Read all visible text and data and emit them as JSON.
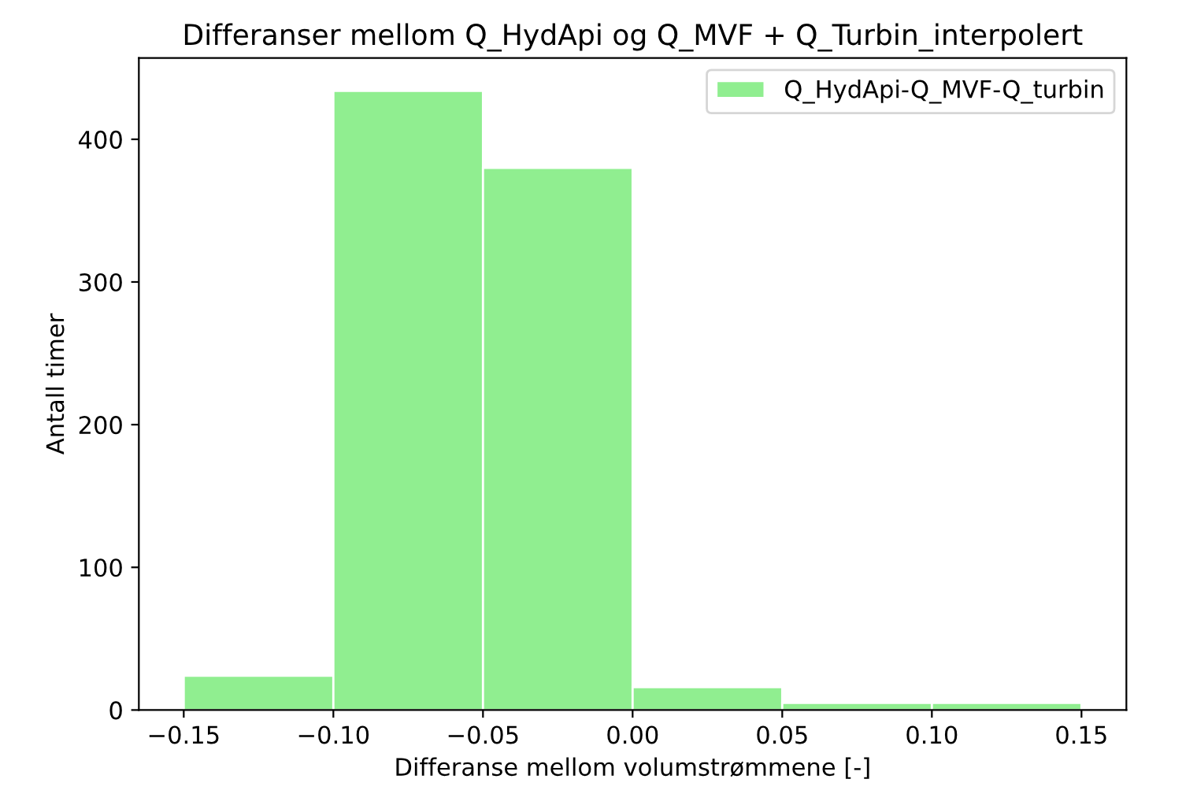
{
  "chart_data": {
    "type": "histogram",
    "title": "Differanser mellom Q_HydApi og Q_MVF + Q_Turbin_interpolert",
    "xlabel": "Differanse mellom volumstrømmene [-]",
    "ylabel": "Antall timer",
    "bins": [
      -0.15,
      -0.1,
      -0.05,
      0.0,
      0.05,
      0.1,
      0.15
    ],
    "series": [
      {
        "name": "Q_HydApi-Q_MVF-Q_turbin",
        "color": "#90ee90",
        "values": [
          24,
          434,
          380,
          16,
          5,
          5
        ]
      }
    ],
    "xlim": [
      -0.165,
      0.165
    ],
    "ylim": [
      0,
      457
    ],
    "xticks": [
      {
        "value": -0.15,
        "label": "−0.15"
      },
      {
        "value": -0.1,
        "label": "−0.10"
      },
      {
        "value": -0.05,
        "label": "−0.05"
      },
      {
        "value": 0.0,
        "label": "0.00"
      },
      {
        "value": 0.05,
        "label": "0.05"
      },
      {
        "value": 0.1,
        "label": "0.10"
      },
      {
        "value": 0.15,
        "label": "0.15"
      }
    ],
    "yticks": [
      0,
      100,
      200,
      300,
      400
    ],
    "legend": "top right"
  }
}
